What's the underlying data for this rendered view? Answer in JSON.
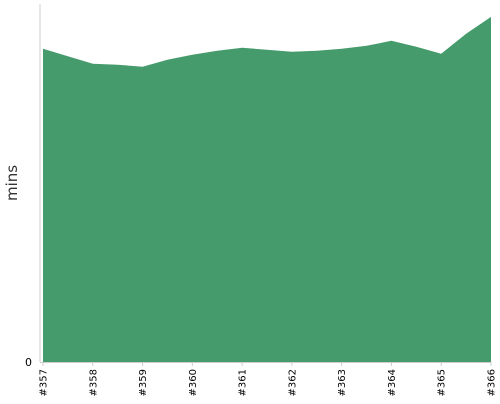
{
  "chart_data": {
    "type": "area",
    "title": "",
    "xlabel": "",
    "ylabel": "mins",
    "categories": [
      "#357",
      "#358",
      "#359",
      "#360",
      "#361",
      "#362",
      "#363",
      "#364",
      "#365",
      "#366"
    ],
    "y_tick_labels": [
      "0"
    ],
    "series": [
      {
        "x": [
          0,
          1,
          1.5,
          2,
          2.5,
          3,
          3.5,
          4,
          4.5,
          5,
          5.5,
          6,
          6.5,
          7,
          7.5,
          8,
          8.5,
          9
        ],
        "values": [
          31.5,
          30.0,
          29.9,
          29.7,
          30.4,
          30.9,
          31.3,
          31.6,
          31.4,
          31.2,
          31.3,
          31.5,
          31.8,
          32.3,
          31.7,
          31.0,
          33.0,
          34.7
        ]
      }
    ],
    "ylim": [
      0,
      36
    ],
    "grid": false,
    "legend": "none",
    "colors": {
      "area_fill": "#469b6c",
      "axis_line": "#cccccc",
      "tick_text": "#000000",
      "ylabel_text": "#333333"
    }
  }
}
